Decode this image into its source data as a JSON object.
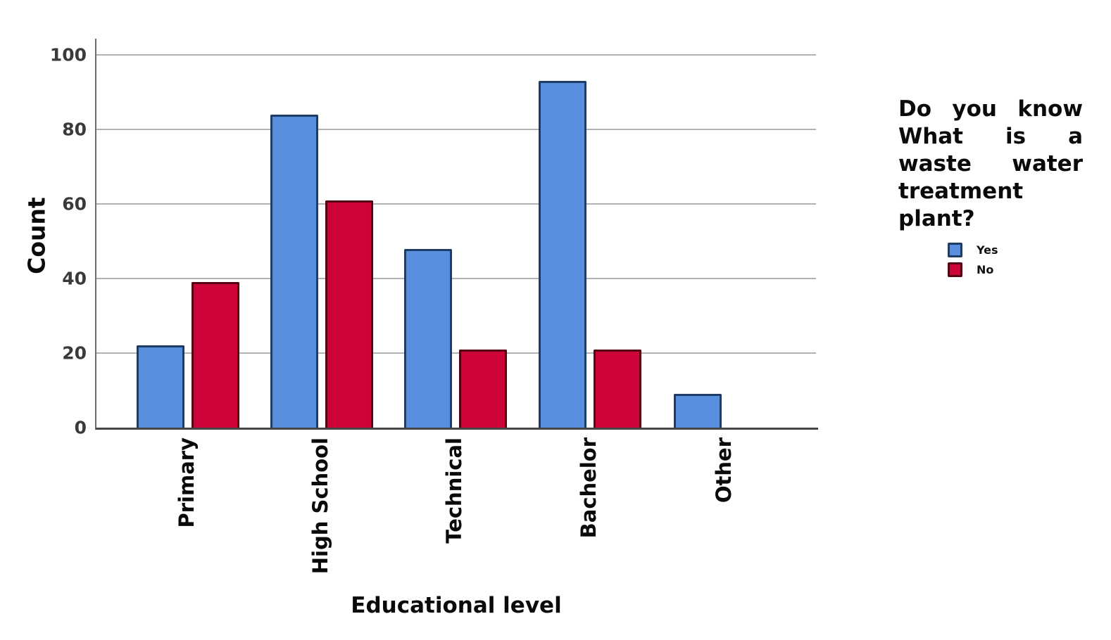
{
  "chart_data": {
    "type": "bar",
    "title": "",
    "xlabel": "Educational level",
    "ylabel": "Count",
    "categories": [
      "Primary",
      "High School",
      "Technical",
      "Bachelor",
      "Other"
    ],
    "series": [
      {
        "name": "Yes",
        "color": "#588EDE",
        "border_color": "#1F3C66",
        "values": [
          22,
          84,
          48,
          93,
          9
        ]
      },
      {
        "name": "No",
        "color": "#CE0438",
        "border_color": "#570014",
        "values": [
          39,
          61,
          21,
          21,
          0
        ]
      }
    ],
    "yticks": [
      0,
      20,
      40,
      60,
      80,
      100
    ],
    "ylim": [
      0,
      104
    ],
    "grid": "horizontal",
    "legend_position": "right",
    "legend_title": "Do you know What is a waste water treatment plant?",
    "colors": {
      "gridline": "#b2b2b2",
      "axis": "#6e6e6e",
      "tick_text": "#3a3a3a",
      "label_text": "#0a0a0a"
    }
  }
}
